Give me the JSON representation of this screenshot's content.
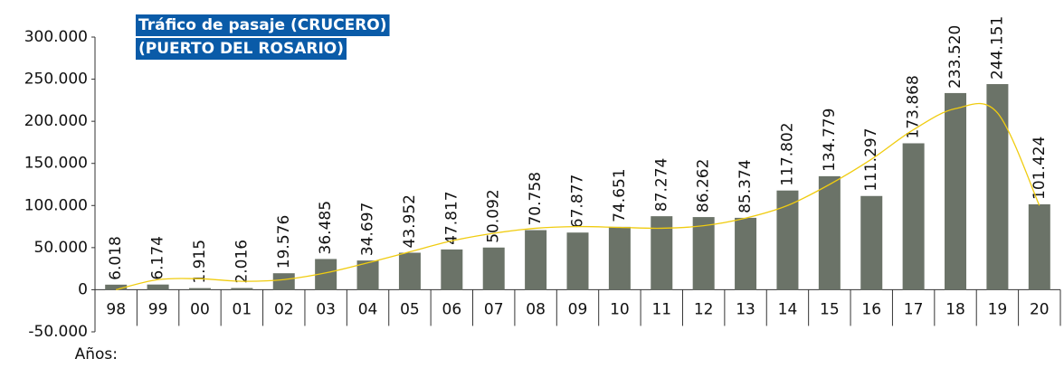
{
  "chart_data": {
    "type": "bar",
    "title": [
      "Tráfico de pasaje (CRUCERO)",
      "(PUERTO DEL ROSARIO)"
    ],
    "x_label": "Años:",
    "categories": [
      "98",
      "99",
      "00",
      "01",
      "02",
      "03",
      "04",
      "05",
      "06",
      "07",
      "08",
      "09",
      "10",
      "11",
      "12",
      "13",
      "14",
      "15",
      "16",
      "17",
      "18",
      "19",
      "20"
    ],
    "values": [
      6018,
      6174,
      1915,
      2016,
      19576,
      36485,
      34697,
      43952,
      47817,
      50092,
      70758,
      67877,
      74651,
      87274,
      86262,
      85374,
      117802,
      134779,
      111297,
      173868,
      233520,
      244151,
      101424
    ],
    "value_labels": [
      "6.018",
      "6.174",
      "1.915",
      "2.016",
      "19.576",
      "36.485",
      "34.697",
      "43.952",
      "47.817",
      "50.092",
      "70.758",
      "67.877",
      "74.651",
      "87.274",
      "86.262",
      "85.374",
      "117.802",
      "134.779",
      "111.297",
      "173.868",
      "233.520",
      "244.151",
      "101.424"
    ],
    "color": "#6b7368",
    "trendline": {
      "color": "#f0cc10",
      "values": [
        0,
        12000,
        13000,
        10000,
        12000,
        20000,
        32000,
        45000,
        58000,
        67000,
        73000,
        75000,
        74000,
        73000,
        76000,
        85000,
        100000,
        125000,
        155000,
        190000,
        215000,
        210000,
        100000
      ]
    },
    "title_color": "#0a5ba8",
    "ylim": [
      -50000,
      300000
    ],
    "yticks": [
      {
        "value": -50000,
        "label": "-50.000"
      },
      0,
      {
        "value": 50000,
        "label": "50.000"
      },
      {
        "value": 100000,
        "label": "100.000"
      },
      {
        "value": 150000,
        "label": "150.000"
      },
      {
        "value": 200000,
        "label": "200.000"
      },
      {
        "value": 250000,
        "label": "250.000"
      },
      {
        "value": 300000,
        "label": "300.000"
      }
    ]
  }
}
